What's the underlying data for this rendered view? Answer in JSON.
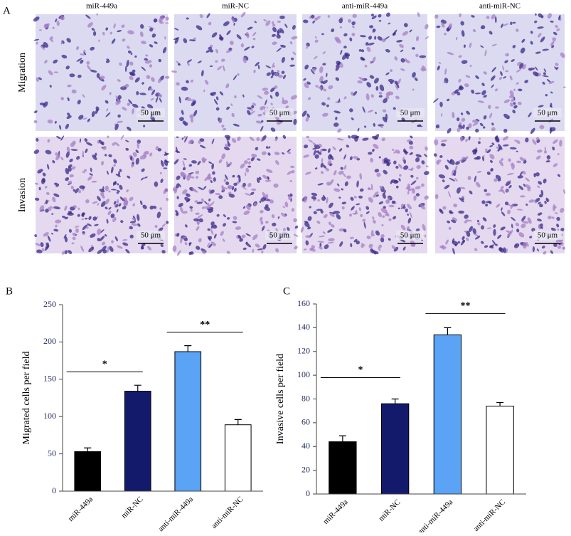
{
  "figure": {
    "panel_label": "A",
    "columns": [
      "miR-449a",
      "miR-NC",
      "anti-miR-449a",
      "anti-miR-NC"
    ],
    "rows": [
      "Migration",
      "Invasion"
    ],
    "scale_bars": [
      "50 μm",
      "50 μm",
      "50 μm",
      "50 μm",
      "50 μm",
      "50 μm",
      "50 μm",
      "50 μm"
    ]
  },
  "chart_data": [
    {
      "type": "bar",
      "panel_label": "B",
      "ylabel": "Migrated cells per field",
      "categories": [
        "miR-449a",
        "miR-NC",
        "anti-miR-449a",
        "anti-miR-NC"
      ],
      "values": [
        53,
        134,
        187,
        89
      ],
      "errors": [
        5,
        8,
        8,
        7
      ],
      "colors": [
        "#000000",
        "#141a6b",
        "#5aa3f5",
        "#ffffff"
      ],
      "ylim": [
        0,
        250
      ],
      "yticks": [
        0,
        50,
        100,
        150,
        200,
        250
      ],
      "annotations": [
        {
          "label": "*",
          "y": 160
        },
        {
          "label": "**",
          "y": 213
        }
      ]
    },
    {
      "type": "bar",
      "panel_label": "C",
      "ylabel": "Invasive cells per field",
      "categories": [
        "miR-449a",
        "miR-NC",
        "anti-miR-449a",
        "anti-miR-NC"
      ],
      "values": [
        44,
        76,
        134,
        74
      ],
      "errors": [
        5,
        4,
        6,
        3
      ],
      "colors": [
        "#000000",
        "#141a6b",
        "#5aa3f5",
        "#ffffff"
      ],
      "ylim": [
        0,
        160
      ],
      "yticks": [
        0,
        20,
        40,
        60,
        80,
        100,
        120,
        140,
        160
      ],
      "annotations": [
        {
          "label": "*",
          "y": 98
        },
        {
          "label": "**",
          "y": 152
        }
      ]
    }
  ]
}
